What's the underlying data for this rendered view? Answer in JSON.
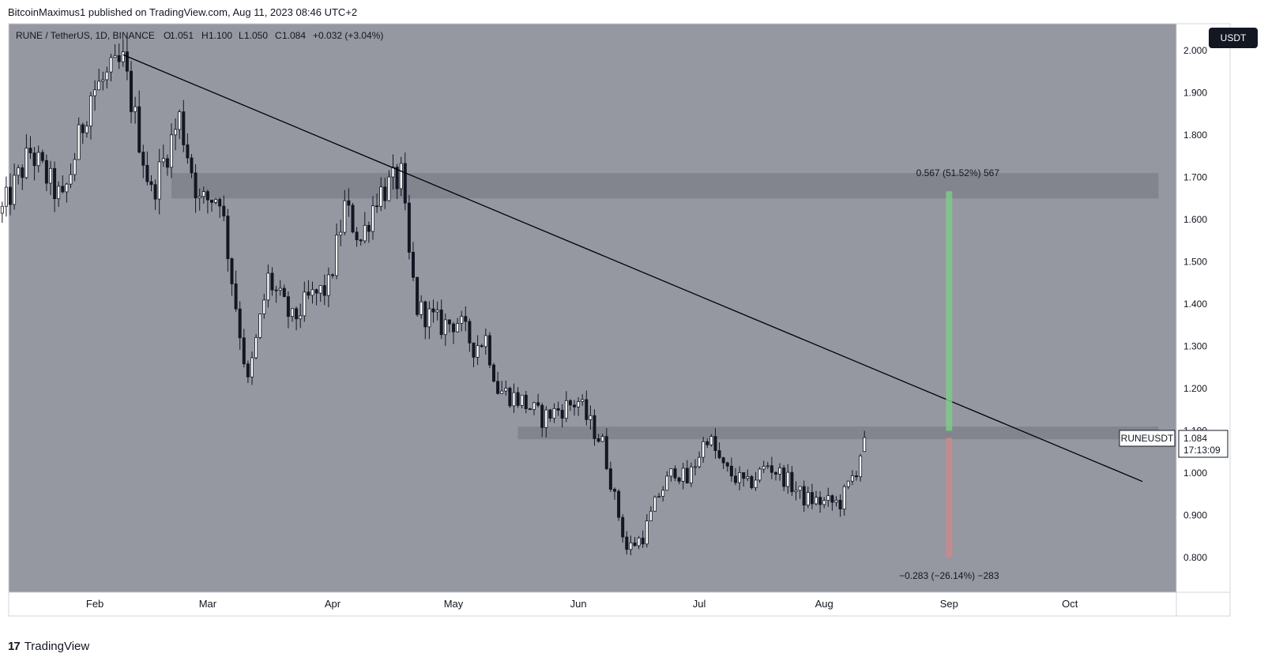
{
  "header": {
    "published": "BitcoinMaximus1 published on TradingView.com, Aug 11, 2023 08:46 UTC+2"
  },
  "legend": {
    "symbol": "RUNE / TetherUS, 1D, BINANCE",
    "o_label": "O",
    "o_val": "1.051",
    "h_label": "H",
    "h_val": "1.100",
    "l_label": "L",
    "l_val": "1.050",
    "c_label": "C",
    "c_val": "1.084",
    "change": "+0.032 (+3.04%)"
  },
  "currency_button": "USDT",
  "price_label": {
    "symbol": "RUNEUSDT",
    "price": "1.084",
    "countdown": "17:13:09"
  },
  "measure": {
    "upper_text": "0.567 (51.52%) 567",
    "lower_text": "−0.283 (−26.14%) −283"
  },
  "footer": {
    "brand": "TradingView",
    "logo": "17"
  },
  "colors": {
    "plot_bg": "#9598a1",
    "zone": "#80838c",
    "candle": "#131722",
    "candle_up_fill": "#ffffff",
    "trendline": "#000000",
    "target_up": "#7fc98a",
    "target_down": "#c98a8a"
  },
  "chart_data": {
    "type": "candlestick",
    "title": "RUNE / TetherUS, 1D, BINANCE",
    "xlabel": "",
    "ylabel": "",
    "x_ticks": [
      "Feb",
      "Mar",
      "Apr",
      "May",
      "Jun",
      "Jul",
      "Aug",
      "Sep",
      "Oct"
    ],
    "y_ticks": [
      "0.800",
      "0.900",
      "1.000",
      "1.100",
      "1.200",
      "1.300",
      "1.400",
      "1.500",
      "1.600",
      "1.700",
      "1.800",
      "1.900",
      "2.000"
    ],
    "ylim": [
      0.77,
      2.0
    ],
    "x_range": [
      "2023-01-09",
      "2023-10-24"
    ],
    "grid": false,
    "resistance_zone": {
      "y": [
        1.65,
        1.71
      ],
      "from": "2023-02-20",
      "to": "2023-10-23"
    },
    "support_resistance_zone": {
      "y": [
        1.08,
        1.11
      ],
      "from": "2023-05-17",
      "to": "2023-10-23"
    },
    "descending_trendline": {
      "start": {
        "x": "2023-02-08",
        "y": 1.99
      },
      "end": {
        "x": "2023-10-19",
        "y": 0.98
      }
    },
    "upside_target": {
      "x": "2023-09-01",
      "from": 1.1,
      "to": 1.667,
      "change": 0.567,
      "percent": 51.52
    },
    "downside_target": {
      "x": "2023-09-01",
      "from": 1.083,
      "to": 0.8,
      "change": -0.283,
      "percent": -26.14
    },
    "close_path": [
      [
        "2023-01-09",
        1.62
      ],
      [
        "2023-01-16",
        1.76
      ],
      [
        "2023-01-24",
        1.64
      ],
      [
        "2023-01-31",
        1.9
      ],
      [
        "2023-02-08",
        1.97
      ],
      [
        "2023-02-15",
        1.66
      ],
      [
        "2023-02-22",
        1.84
      ],
      [
        "2023-02-27",
        1.64
      ],
      [
        "2023-03-04",
        1.66
      ],
      [
        "2023-03-07",
        1.46
      ],
      [
        "2023-03-11",
        1.21
      ],
      [
        "2023-03-16",
        1.46
      ],
      [
        "2023-03-22",
        1.36
      ],
      [
        "2023-03-26",
        1.41
      ],
      [
        "2023-03-31",
        1.44
      ],
      [
        "2023-04-04",
        1.63
      ],
      [
        "2023-04-08",
        1.55
      ],
      [
        "2023-04-12",
        1.66
      ],
      [
        "2023-04-18",
        1.7
      ],
      [
        "2023-04-20",
        1.51
      ],
      [
        "2023-04-22",
        1.39
      ],
      [
        "2023-04-28",
        1.35
      ],
      [
        "2023-05-02",
        1.36
      ],
      [
        "2023-05-06",
        1.3
      ],
      [
        "2023-05-09",
        1.32
      ],
      [
        "2023-05-12",
        1.2
      ],
      [
        "2023-05-18",
        1.17
      ],
      [
        "2023-05-23",
        1.13
      ],
      [
        "2023-05-27",
        1.15
      ],
      [
        "2023-06-01",
        1.17
      ],
      [
        "2023-06-03",
        1.13
      ],
      [
        "2023-06-07",
        1.07
      ],
      [
        "2023-06-10",
        0.94
      ],
      [
        "2023-06-13",
        0.82
      ],
      [
        "2023-06-17",
        0.85
      ],
      [
        "2023-06-21",
        0.95
      ],
      [
        "2023-06-25",
        1.01
      ],
      [
        "2023-06-28",
        0.98
      ],
      [
        "2023-07-03",
        1.09
      ],
      [
        "2023-07-07",
        1.01
      ],
      [
        "2023-07-13",
        0.97
      ],
      [
        "2023-07-18",
        1.02
      ],
      [
        "2023-07-22",
        0.99
      ],
      [
        "2023-07-27",
        0.94
      ],
      [
        "2023-08-01",
        0.93
      ],
      [
        "2023-08-05",
        0.93
      ],
      [
        "2023-08-09",
        1.01
      ],
      [
        "2023-08-11",
        1.084
      ]
    ]
  }
}
